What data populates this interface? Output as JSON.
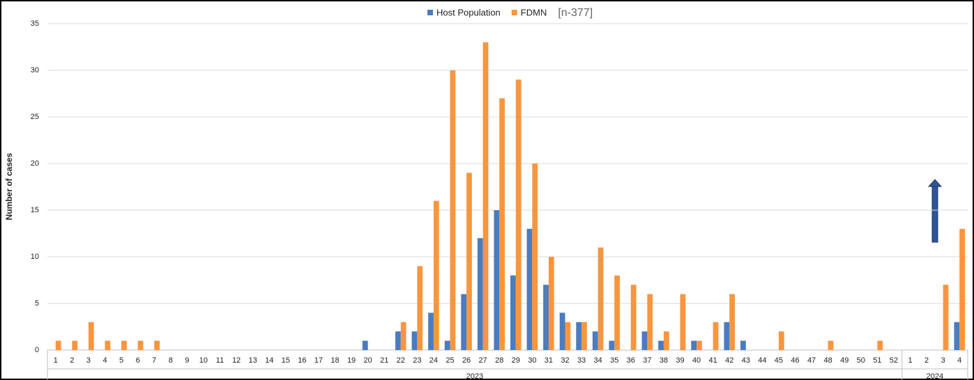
{
  "chart_data": {
    "type": "bar",
    "title": "",
    "annotation": "[n-377]",
    "y_label": "Number of cases",
    "categories": [
      "1",
      "2",
      "3",
      "4",
      "5",
      "6",
      "7",
      "8",
      "9",
      "10",
      "11",
      "12",
      "13",
      "14",
      "15",
      "16",
      "17",
      "18",
      "19",
      "20",
      "21",
      "22",
      "23",
      "24",
      "25",
      "26",
      "27",
      "28",
      "29",
      "30",
      "31",
      "32",
      "33",
      "34",
      "35",
      "36",
      "37",
      "38",
      "39",
      "40",
      "41",
      "42",
      "43",
      "44",
      "45",
      "46",
      "47",
      "48",
      "49",
      "50",
      "51",
      "52",
      "1",
      "2",
      "3",
      "4"
    ],
    "x_groups": [
      "2023",
      "2024"
    ],
    "series": [
      {
        "name": "Host Population",
        "color": "#4a7cc0",
        "values": [
          0,
          0,
          0,
          0,
          0,
          0,
          0,
          0,
          0,
          0,
          0,
          0,
          0,
          0,
          0,
          0,
          0,
          0,
          0,
          1,
          0,
          2,
          2,
          4,
          1,
          6,
          12,
          15,
          8,
          13,
          7,
          4,
          3,
          2,
          1,
          0,
          2,
          1,
          0,
          1,
          0,
          3,
          1,
          0,
          0,
          0,
          0,
          0,
          0,
          0,
          0,
          0,
          0,
          0,
          0,
          3
        ]
      },
      {
        "name": "FDMN",
        "color": "#f7963f",
        "values": [
          1,
          1,
          3,
          1,
          1,
          1,
          1,
          0,
          0,
          0,
          0,
          0,
          0,
          0,
          0,
          0,
          0,
          0,
          0,
          0,
          0,
          3,
          9,
          16,
          30,
          19,
          33,
          27,
          29,
          20,
          10,
          3,
          3,
          11,
          8,
          7,
          6,
          2,
          6,
          1,
          3,
          6,
          0,
          0,
          2,
          0,
          0,
          1,
          0,
          0,
          1,
          0,
          0,
          0,
          7,
          13
        ]
      }
    ],
    "ylim": [
      0,
      35
    ],
    "yticks": [
      0,
      5,
      10,
      15,
      20,
      25,
      30,
      35
    ],
    "grid": true
  }
}
